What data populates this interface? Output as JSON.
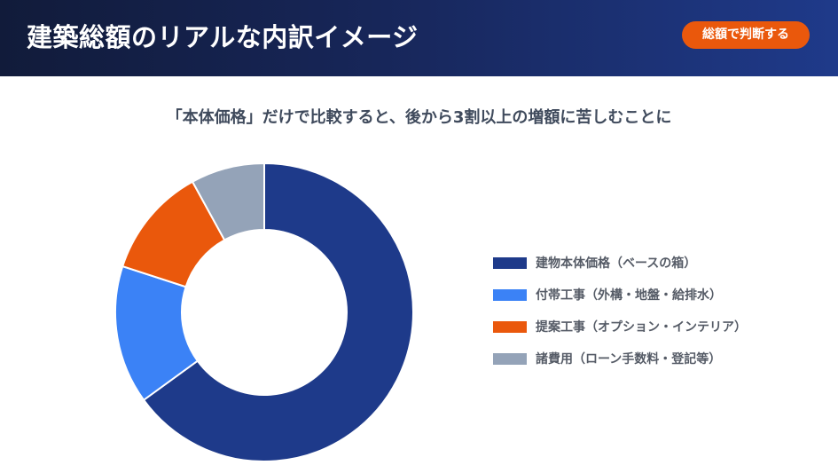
{
  "header": {
    "title": "建築総額のリアルな内訳イメージ",
    "cta_label": "総額で判断する"
  },
  "subtitle": "「本体価格」だけで比較すると、後から3割以上の増額に苦しむことに",
  "colors": {
    "header_start": "#111b3a",
    "header_end": "#1f3a8a",
    "accent": "#ea580c"
  },
  "legend": [
    {
      "label": "建物本体価格（ベースの箱）",
      "color": "#1e3a8a"
    },
    {
      "label": "付帯工事（外構・地盤・給排水）",
      "color": "#3b82f6"
    },
    {
      "label": "提案工事（オプション・インテリア）",
      "color": "#ea580c"
    },
    {
      "label": "諸費用（ローン手数料・登記等）",
      "color": "#94a3b8"
    }
  ],
  "chart_data": {
    "type": "pie",
    "variant": "donut",
    "title": "建築総額のリアルな内訳イメージ",
    "subtitle": "「本体価格」だけで比較すると、後から3割以上の増額に苦しむことに",
    "categories": [
      "建物本体価格（ベースの箱）",
      "付帯工事（外構・地盤・給排水）",
      "提案工事（オプション・インテリア）",
      "諸費用（ローン手数料・登記等）"
    ],
    "values": [
      65,
      15,
      12,
      8
    ],
    "colors": [
      "#1e3a8a",
      "#3b82f6",
      "#ea580c",
      "#94a3b8"
    ],
    "start_angle": "12 o'clock, clockwise",
    "legend_position": "right"
  }
}
